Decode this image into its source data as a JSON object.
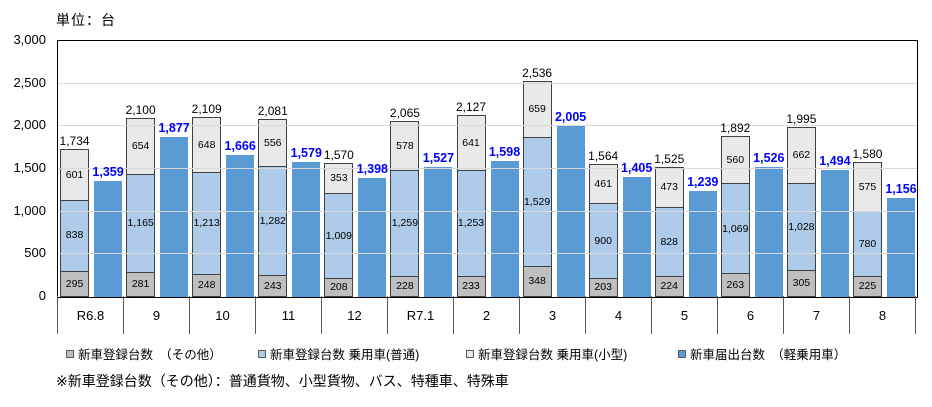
{
  "footnote": "※新車登録台数（その他）：普通貨物、小型貨物、バス、特種車、特殊車",
  "legend": {
    "items": [
      {
        "label": "新車登録台数　（その他）",
        "color": "#BFBFBF"
      },
      {
        "label": "新車登録台数 乗用車(普通)",
        "color": "#AECBEA"
      },
      {
        "label": "新車登録台数 乗用車(小型)",
        "color": "#E9E9E9"
      },
      {
        "label": "新車届出台数　（軽乗用車）",
        "color": "#5B9BD5"
      }
    ]
  },
  "chart_data": {
    "type": "bar",
    "title": "",
    "unit_label": "単位：台",
    "categories": [
      "R6.8",
      "9",
      "10",
      "11",
      "12",
      "R7.1",
      "2",
      "3",
      "4",
      "5",
      "6",
      "7",
      "8"
    ],
    "stack_series": [
      {
        "name": "新車登録台数　（その他）",
        "position": "bottom",
        "color": "#BFBFBF",
        "values": [
          295,
          281,
          248,
          243,
          208,
          228,
          233,
          348,
          203,
          224,
          263,
          305,
          225
        ]
      },
      {
        "name": "新車登録台数 乗用車(普通)",
        "position": "middle",
        "color": "#AECBEA",
        "values": [
          838,
          1165,
          1213,
          1282,
          1009,
          1259,
          1253,
          1529,
          900,
          828,
          1069,
          1028,
          780
        ]
      },
      {
        "name": "新車登録台数 乗用車(小型)",
        "position": "top",
        "color": "#E9E9E9",
        "values": [
          601,
          654,
          648,
          556,
          353,
          578,
          641,
          659,
          461,
          473,
          560,
          662,
          575
        ]
      }
    ],
    "stack_totals": [
      1734,
      2100,
      2109,
      2081,
      1570,
      2065,
      2127,
      2536,
      1564,
      1525,
      1892,
      1995,
      1580
    ],
    "bar_series": {
      "name": "新車届出台数　（軽乗用車）",
      "color": "#5B9BD5",
      "values": [
        1359,
        1877,
        1666,
        1579,
        1398,
        1527,
        1598,
        2005,
        1405,
        1239,
        1526,
        1494,
        1156
      ]
    },
    "ylim": [
      0,
      3000
    ],
    "yticks": [
      0,
      500,
      1000,
      1500,
      2000,
      2500,
      3000
    ],
    "grid": true,
    "legend_position": "bottom",
    "colors": {
      "axis": "#000000",
      "gridline": "#D9D9D9",
      "value_label": "#000000",
      "reported_label": "#0000FF"
    }
  }
}
